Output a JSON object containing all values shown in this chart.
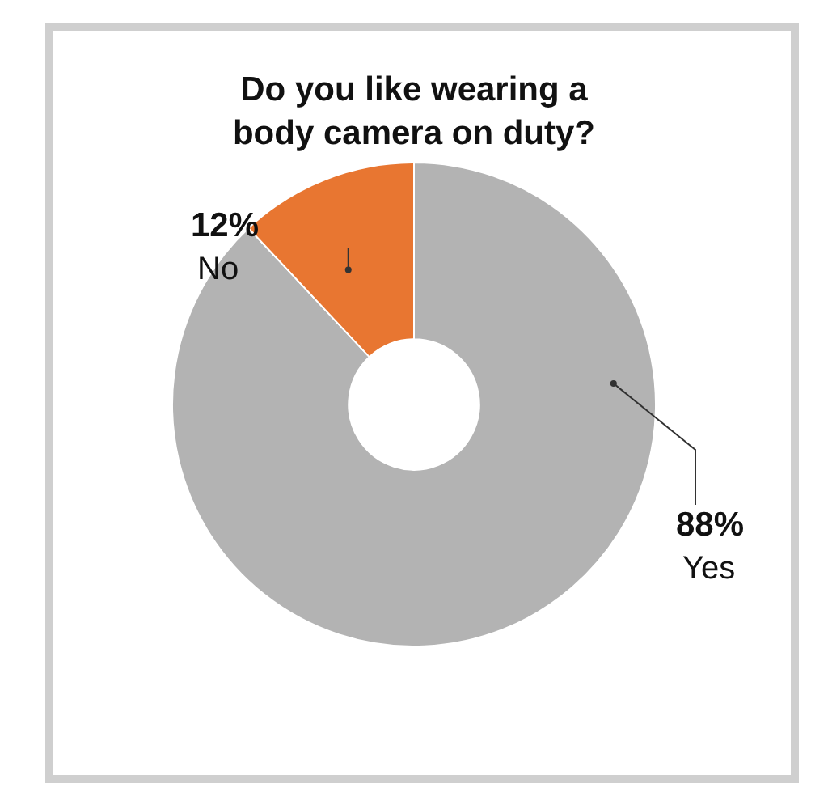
{
  "chart_data": {
    "type": "donut",
    "title": "Do you like wearing a body camera on duty?",
    "categories": [
      "Yes",
      "No"
    ],
    "values": [
      88,
      12
    ],
    "colors": [
      "#b3b3b3",
      "#e87631"
    ],
    "value_labels": [
      "88%",
      "12%"
    ],
    "legend": false
  }
}
